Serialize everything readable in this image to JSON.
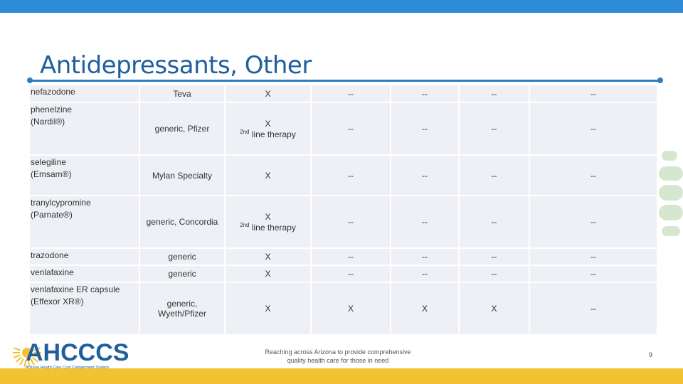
{
  "slide": {
    "title": "Antidepressants, Other",
    "footer_line1": "Reaching across Arizona to provide comprehensive",
    "footer_line2": "quality health care for those in need",
    "page_number": "9"
  },
  "logo": {
    "name": "AHCCCS",
    "tagline": "Arizona Health Care Cost Containment System"
  },
  "rows": [
    {
      "drug1": "nefazodone",
      "drug2": "",
      "mfr1": "Teva",
      "mfr2": "",
      "c1": "X",
      "c1b": "",
      "c1sup": "",
      "c2": "--",
      "c3": "--",
      "c4": "--",
      "c5": "--"
    },
    {
      "drug1": "phenelzine",
      "drug2": "(Nardil®)",
      "mfr1": "generic, Pfizer",
      "mfr2": "",
      "c1": "X",
      "c1b": " line therapy",
      "c1sup": "2nd",
      "c2": "--",
      "c3": "--",
      "c4": "--",
      "c5": "--"
    },
    {
      "drug1": "selegiline",
      "drug2": "(Emsam®)",
      "mfr1": "Mylan Specialty",
      "mfr2": "",
      "c1": "X",
      "c1b": "",
      "c1sup": "",
      "c2": "--",
      "c3": "--",
      "c4": "--",
      "c5": "--"
    },
    {
      "drug1": "tranylcypromine",
      "drug2": "(Parnate®)",
      "mfr1": "generic, Concordia",
      "mfr2": "",
      "c1": "X",
      "c1b": " line therapy",
      "c1sup": "2nd",
      "c2": "--",
      "c3": "--",
      "c4": "--",
      "c5": "--"
    },
    {
      "drug1": "trazodone",
      "drug2": "",
      "mfr1": "generic",
      "mfr2": "",
      "c1": "X",
      "c1b": "",
      "c1sup": "",
      "c2": "--",
      "c3": "--",
      "c4": "--",
      "c5": "--"
    },
    {
      "drug1": "venlafaxine",
      "drug2": "",
      "mfr1": "generic",
      "mfr2": "",
      "c1": "X",
      "c1b": "",
      "c1sup": "",
      "c2": "--",
      "c3": "--",
      "c4": "--",
      "c5": "--"
    },
    {
      "drug1": "venlafaxine ER capsule",
      "drug2": "(Effexor XR®)",
      "mfr1": "generic,",
      "mfr2": "Wyeth/Pfizer",
      "c1": "X",
      "c1b": "",
      "c1sup": "",
      "c2": "X",
      "c3": "X",
      "c4": "X",
      "c5": "--"
    }
  ],
  "colors": {
    "top_bar": "#2e8bd6",
    "bottom_bar": "#f2c230",
    "title": "#1f5f9e",
    "cell_fill": "#eef0f6",
    "logo_blue": "#1f5f9e",
    "logo_sun": "#f2c230"
  }
}
